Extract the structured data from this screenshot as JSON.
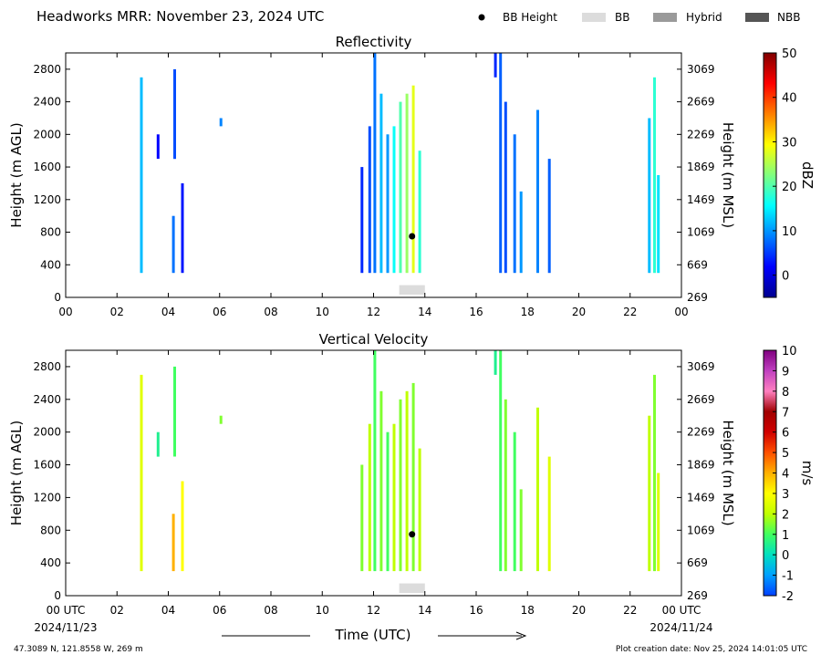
{
  "header": {
    "title": "Headworks MRR:  November 23, 2024 UTC"
  },
  "legend": {
    "placement": "top-right",
    "items": [
      {
        "label": "BB Height",
        "kind": "dot",
        "color": "#000000"
      },
      {
        "label": "BB",
        "kind": "box",
        "color": "#dcdcdc"
      },
      {
        "label": "Hybrid",
        "kind": "box",
        "color": "#9a9a9a"
      },
      {
        "label": "NBB",
        "kind": "box",
        "color": "#555555"
      }
    ]
  },
  "axes_common": {
    "xlim": [
      0,
      24
    ],
    "ylim": [
      0,
      3000
    ],
    "y_ticks": [
      0,
      400,
      800,
      1200,
      1600,
      2000,
      2400,
      2800
    ],
    "y2_ticks": [
      269,
      669,
      1069,
      1469,
      1869,
      2269,
      2669,
      3069
    ],
    "ylabel_left": "Height (m AGL)",
    "ylabel_right": "Height (m MSL)"
  },
  "xaxis": {
    "top_labels": [
      "00",
      "02",
      "04",
      "06",
      "08",
      "10",
      "12",
      "14",
      "16",
      "18",
      "20",
      "22",
      "00"
    ],
    "bottom_labels": [
      "00 UTC",
      "02",
      "04",
      "06",
      "08",
      "10",
      "12",
      "14",
      "16",
      "18",
      "20",
      "22",
      "00 UTC"
    ],
    "date_left": "2024/11/23",
    "date_right": "2024/11/24",
    "label": "Time (UTC)"
  },
  "chart_data": [
    {
      "type": "heatmap",
      "title": "Reflectivity",
      "xlabel": "",
      "ylabel": "Height (m AGL)",
      "y2label": "Height (m MSL)",
      "xlim": [
        0,
        24
      ],
      "ylim": [
        0,
        3000
      ],
      "colorbar": {
        "label": "dBZ",
        "range": [
          -5,
          50
        ],
        "ticks": [
          0,
          10,
          20,
          30,
          40,
          50
        ],
        "scheme": "jet"
      },
      "bb_height_point": {
        "x": 13.5,
        "y": 750
      },
      "bb_interval": {
        "x_start": 13.0,
        "x_end": 14.0,
        "class": "BB"
      },
      "cells": [
        {
          "x": 2.95,
          "y0": 300,
          "y1": 2700,
          "v": 12
        },
        {
          "x": 3.6,
          "y0": 1700,
          "y1": 2000,
          "v": 2
        },
        {
          "x": 4.2,
          "y0": 300,
          "y1": 1000,
          "v": 8
        },
        {
          "x": 4.25,
          "y0": 1700,
          "y1": 2800,
          "v": 6
        },
        {
          "x": 4.55,
          "y0": 300,
          "y1": 1400,
          "v": 3
        },
        {
          "x": 6.05,
          "y0": 2100,
          "y1": 2200,
          "v": 9
        },
        {
          "x": 11.55,
          "y0": 300,
          "y1": 1600,
          "v": 4
        },
        {
          "x": 11.85,
          "y0": 300,
          "y1": 2100,
          "v": 6
        },
        {
          "x": 12.05,
          "y0": 300,
          "y1": 3000,
          "v": 8
        },
        {
          "x": 12.3,
          "y0": 300,
          "y1": 2500,
          "v": 12
        },
        {
          "x": 12.55,
          "y0": 300,
          "y1": 2000,
          "v": 10
        },
        {
          "x": 12.8,
          "y0": 300,
          "y1": 2100,
          "v": 16
        },
        {
          "x": 13.05,
          "y0": 300,
          "y1": 2400,
          "v": 20
        },
        {
          "x": 13.3,
          "y0": 300,
          "y1": 2500,
          "v": 24
        },
        {
          "x": 13.55,
          "y0": 300,
          "y1": 2600,
          "v": 28
        },
        {
          "x": 13.8,
          "y0": 300,
          "y1": 1800,
          "v": 18
        },
        {
          "x": 16.75,
          "y0": 2700,
          "y1": 3000,
          "v": 4
        },
        {
          "x": 16.95,
          "y0": 300,
          "y1": 3000,
          "v": 7
        },
        {
          "x": 17.15,
          "y0": 300,
          "y1": 2400,
          "v": 6
        },
        {
          "x": 17.5,
          "y0": 300,
          "y1": 2000,
          "v": 8
        },
        {
          "x": 17.75,
          "y0": 300,
          "y1": 1300,
          "v": 10
        },
        {
          "x": 18.4,
          "y0": 300,
          "y1": 2300,
          "v": 9
        },
        {
          "x": 18.85,
          "y0": 300,
          "y1": 1700,
          "v": 7
        },
        {
          "x": 22.75,
          "y0": 300,
          "y1": 2200,
          "v": 12
        },
        {
          "x": 22.95,
          "y0": 300,
          "y1": 2700,
          "v": 18
        },
        {
          "x": 23.1,
          "y0": 300,
          "y1": 1500,
          "v": 14
        }
      ]
    },
    {
      "type": "heatmap",
      "title": "Vertical Velocity",
      "xlabel": "Time (UTC)",
      "ylabel": "Height (m AGL)",
      "y2label": "Height (m MSL)",
      "xlim": [
        0,
        24
      ],
      "ylim": [
        0,
        3000
      ],
      "colorbar": {
        "label": "m/s",
        "range": [
          -2,
          10
        ],
        "ticks": [
          -2,
          -1,
          0,
          1,
          2,
          3,
          4,
          5,
          6,
          7,
          8,
          9,
          10
        ],
        "scheme": "velocity"
      },
      "bb_height_point": {
        "x": 13.5,
        "y": 750
      },
      "bb_interval": {
        "x_start": 13.0,
        "x_end": 14.0,
        "class": "BB"
      },
      "cells": [
        {
          "x": 2.95,
          "y0": 300,
          "y1": 2700,
          "v": 2.5
        },
        {
          "x": 3.6,
          "y0": 1700,
          "y1": 2000,
          "v": 0.5
        },
        {
          "x": 4.2,
          "y0": 300,
          "y1": 1000,
          "v": 4
        },
        {
          "x": 4.25,
          "y0": 1700,
          "y1": 2800,
          "v": 1
        },
        {
          "x": 4.55,
          "y0": 300,
          "y1": 1400,
          "v": 3
        },
        {
          "x": 6.05,
          "y0": 2100,
          "y1": 2200,
          "v": 1.5
        },
        {
          "x": 11.55,
          "y0": 300,
          "y1": 1600,
          "v": 1.5
        },
        {
          "x": 11.85,
          "y0": 300,
          "y1": 2100,
          "v": 2
        },
        {
          "x": 12.05,
          "y0": 300,
          "y1": 3000,
          "v": 1
        },
        {
          "x": 12.3,
          "y0": 300,
          "y1": 2500,
          "v": 1.5
        },
        {
          "x": 12.55,
          "y0": 300,
          "y1": 2000,
          "v": 1
        },
        {
          "x": 12.8,
          "y0": 300,
          "y1": 2100,
          "v": 2
        },
        {
          "x": 13.05,
          "y0": 300,
          "y1": 2400,
          "v": 1.5
        },
        {
          "x": 13.3,
          "y0": 300,
          "y1": 2500,
          "v": 2
        },
        {
          "x": 13.55,
          "y0": 300,
          "y1": 2600,
          "v": 1.5
        },
        {
          "x": 13.8,
          "y0": 300,
          "y1": 1800,
          "v": 2
        },
        {
          "x": 16.75,
          "y0": 2700,
          "y1": 3000,
          "v": 0.5
        },
        {
          "x": 16.95,
          "y0": 300,
          "y1": 3000,
          "v": 1
        },
        {
          "x": 17.15,
          "y0": 300,
          "y1": 2400,
          "v": 1.5
        },
        {
          "x": 17.5,
          "y0": 300,
          "y1": 2000,
          "v": 1
        },
        {
          "x": 17.75,
          "y0": 300,
          "y1": 1300,
          "v": 1.5
        },
        {
          "x": 18.4,
          "y0": 300,
          "y1": 2300,
          "v": 2
        },
        {
          "x": 18.85,
          "y0": 300,
          "y1": 1700,
          "v": 2.5
        },
        {
          "x": 22.75,
          "y0": 300,
          "y1": 2200,
          "v": 2
        },
        {
          "x": 22.95,
          "y0": 300,
          "y1": 2700,
          "v": 1.5
        },
        {
          "x": 23.1,
          "y0": 300,
          "y1": 1500,
          "v": 2.5
        }
      ]
    }
  ],
  "footer": {
    "location": "47.3089 N, 121.8558 W, 269 m",
    "creation": "Plot creation date: Nov 25, 2024 14:01:05 UTC"
  }
}
